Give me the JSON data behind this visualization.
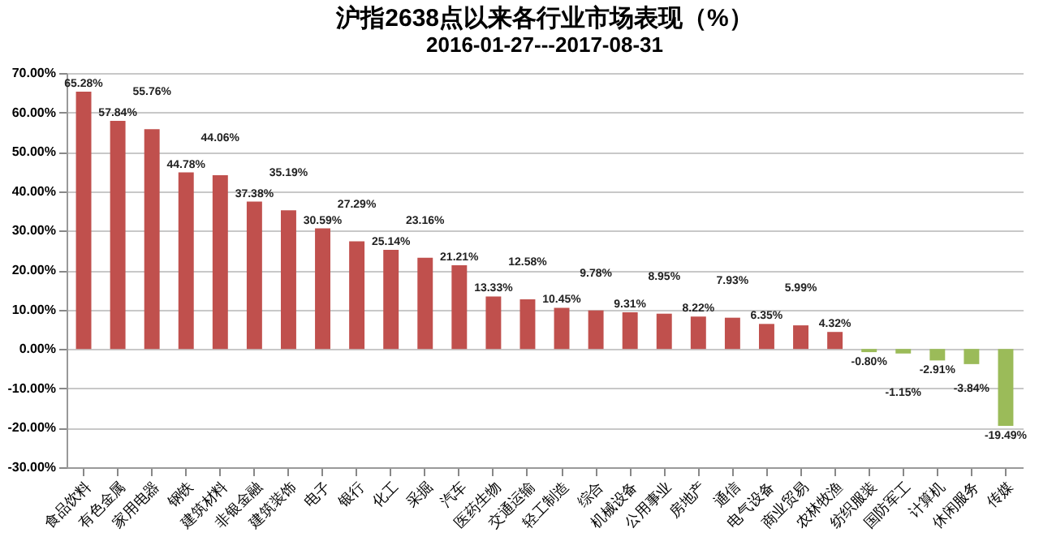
{
  "chart_data": {
    "type": "bar",
    "title": "沪指2638点以来各行业市场表现（%）",
    "subtitle": "2016-01-27---2017-08-31",
    "categories": [
      "食品饮料",
      "有色金属",
      "家用电器",
      "钢铁",
      "建筑材料",
      "非银金融",
      "建筑装饰",
      "电子",
      "银行",
      "化工",
      "采掘",
      "汽车",
      "医药生物",
      "交通运输",
      "轻工制造",
      "综合",
      "机械设备",
      "公用事业",
      "房地产",
      "通信",
      "电气设备",
      "商业贸易",
      "农林牧渔",
      "纺织服装",
      "国防军工",
      "计算机",
      "休闲服务",
      "传媒"
    ],
    "values": [
      65.28,
      57.84,
      55.76,
      44.78,
      44.06,
      37.38,
      35.19,
      30.59,
      27.29,
      25.14,
      23.16,
      21.21,
      13.33,
      12.58,
      10.45,
      9.78,
      9.31,
      8.95,
      8.22,
      7.93,
      6.35,
      5.99,
      4.32,
      -0.8,
      -1.15,
      -2.91,
      -3.84,
      -19.49
    ],
    "value_labels": [
      "65.28%",
      "57.84%",
      "55.76%",
      "44.78%",
      "44.06%",
      "37.38%",
      "35.19%",
      "30.59%",
      "27.29%",
      "25.14%",
      "23.16%",
      "21.21%",
      "13.33%",
      "12.58%",
      "10.45%",
      "9.78%",
      "9.31%",
      "8.95%",
      "8.22%",
      "7.93%",
      "6.35%",
      "5.99%",
      "4.32%",
      "-0.80%",
      "-1.15%",
      "-2.91%",
      "-3.84%",
      "-19.49%"
    ],
    "colors": [
      "#c0504d",
      "#c0504d",
      "#c0504d",
      "#c0504d",
      "#c0504d",
      "#c0504d",
      "#c0504d",
      "#c0504d",
      "#c0504d",
      "#c0504d",
      "#c0504d",
      "#c0504d",
      "#c0504d",
      "#c0504d",
      "#c0504d",
      "#c0504d",
      "#c0504d",
      "#c0504d",
      "#c0504d",
      "#c0504d",
      "#c0504d",
      "#c0504d",
      "#c0504d",
      "#9bbb59",
      "#9bbb59",
      "#9bbb59",
      "#9bbb59",
      "#9bbb59"
    ],
    "ylim": [
      -30,
      70
    ],
    "yticks": [
      {
        "value": -30,
        "label": "-30.00%"
      },
      {
        "value": -20,
        "label": "-20.00%"
      },
      {
        "value": -10,
        "label": "-10.00%"
      },
      {
        "value": 0,
        "label": "0.00%"
      },
      {
        "value": 10,
        "label": "10.00%"
      },
      {
        "value": 20,
        "label": "20.00%"
      },
      {
        "value": 30,
        "label": "30.00%"
      },
      {
        "value": 40,
        "label": "40.00%"
      },
      {
        "value": 50,
        "label": "50.00%"
      },
      {
        "value": 60,
        "label": "60.00%"
      },
      {
        "value": 70,
        "label": "70.00%"
      }
    ],
    "grid": "y"
  }
}
